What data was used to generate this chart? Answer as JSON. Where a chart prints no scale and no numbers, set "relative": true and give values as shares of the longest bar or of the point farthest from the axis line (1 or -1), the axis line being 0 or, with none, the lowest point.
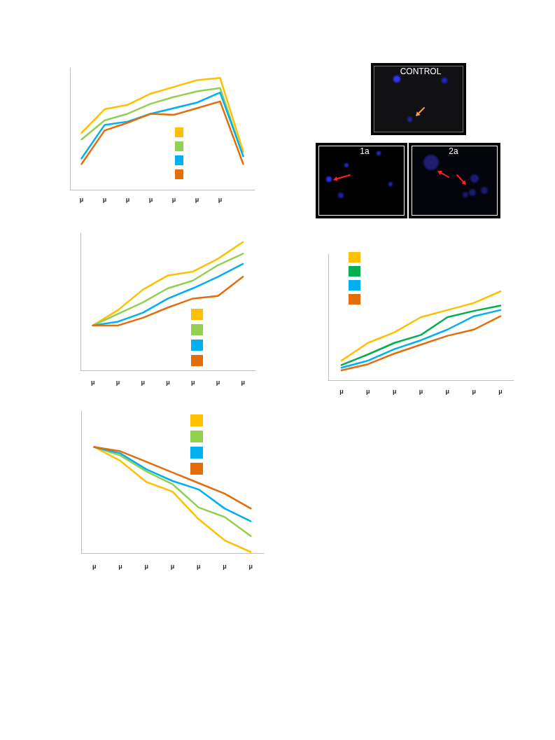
{
  "chart_data": [
    {
      "type": "line",
      "relative": true,
      "categories": [
        "μ",
        "μ",
        "μ",
        "μ",
        "μ",
        "μ",
        "μ",
        null
      ],
      "marker": "none",
      "series": [
        {
          "color": "#ffc000",
          "values": [
            0.51,
            0.72,
            0.76,
            0.86,
            0.92,
            0.98,
            1.0,
            0.34
          ]
        },
        {
          "color": "#92d050",
          "values": [
            0.45,
            0.62,
            0.68,
            0.77,
            0.83,
            0.88,
            0.91,
            0.3
          ]
        },
        {
          "color": "#00b0f0",
          "values": [
            0.28,
            0.58,
            0.61,
            0.68,
            0.73,
            0.78,
            0.87,
            0.3
          ]
        },
        {
          "color": "#e46c0a",
          "values": [
            0.23,
            0.53,
            0.6,
            0.68,
            0.67,
            0.73,
            0.79,
            0.23
          ]
        }
      ]
    },
    {
      "type": "other",
      "annotations": [
        "CONTROL",
        "1a",
        "2a"
      ]
    },
    {
      "type": "line",
      "relative": true,
      "categories": [
        "μ",
        "μ",
        "μ",
        "μ",
        "μ",
        "μ",
        "μ"
      ],
      "marker": "none",
      "series": [
        {
          "color": "#ffc000",
          "values": [
            0.35,
            0.47,
            0.63,
            0.74,
            0.77,
            0.87,
            1.0
          ]
        },
        {
          "color": "#92d050",
          "values": [
            0.35,
            0.44,
            0.53,
            0.64,
            0.7,
            0.82,
            0.91
          ]
        },
        {
          "color": "#00b0f0",
          "values": [
            0.35,
            0.38,
            0.45,
            0.56,
            0.64,
            0.73,
            0.83
          ]
        },
        {
          "color": "#e46c0a",
          "values": [
            0.35,
            0.35,
            0.41,
            0.49,
            0.56,
            0.58,
            0.73
          ]
        }
      ]
    },
    {
      "type": "line",
      "relative": true,
      "categories": [
        "μ",
        "μ",
        "μ",
        "μ",
        "μ",
        "μ",
        "μ"
      ],
      "marker": "none",
      "series": [
        {
          "color": "#ffc000",
          "values": [
            0.22,
            0.42,
            0.54,
            0.71,
            0.79,
            0.87,
            1.0
          ]
        },
        {
          "color": "#00b050",
          "values": [
            0.17,
            0.29,
            0.42,
            0.51,
            0.71,
            0.78,
            0.84
          ]
        },
        {
          "color": "#00b0f0",
          "values": [
            0.14,
            0.22,
            0.35,
            0.45,
            0.57,
            0.72,
            0.79
          ]
        },
        {
          "color": "#e46c0a",
          "values": [
            0.11,
            0.18,
            0.3,
            0.4,
            0.5,
            0.57,
            0.72
          ]
        }
      ]
    },
    {
      "type": "line",
      "relative": true,
      "categories": [
        "μ",
        "μ",
        "μ",
        "μ",
        "μ",
        "μ",
        "μ"
      ],
      "marker": "none",
      "series": [
        {
          "color": "#ffc000",
          "values": [
            1.0,
            0.87,
            0.67,
            0.58,
            0.32,
            0.12,
            0.01
          ]
        },
        {
          "color": "#92d050",
          "values": [
            1.0,
            0.92,
            0.77,
            0.65,
            0.43,
            0.34,
            0.16
          ]
        },
        {
          "color": "#00b0f0",
          "values": [
            1.0,
            0.94,
            0.79,
            0.68,
            0.6,
            0.42,
            0.3
          ]
        },
        {
          "color": "#e46c0a",
          "values": [
            1.0,
            0.96,
            0.86,
            0.76,
            0.66,
            0.56,
            0.42
          ]
        }
      ]
    }
  ]
}
